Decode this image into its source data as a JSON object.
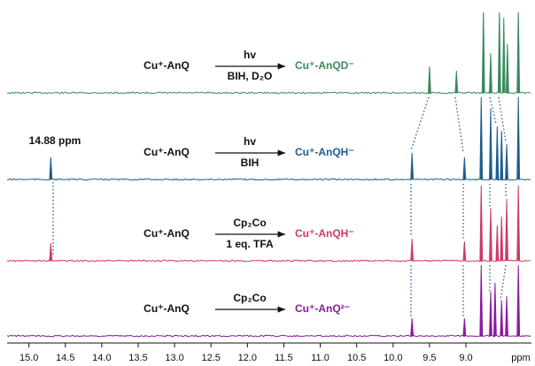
{
  "chart_data": {
    "type": "nmr",
    "x_label": "ppm",
    "xlim": [
      15.3,
      8.1
    ],
    "xticks": [
      {
        "value": 15,
        "label": "15.0"
      },
      {
        "value": 14.5,
        "label": "14.5"
      },
      {
        "value": 14,
        "label": "14.0"
      },
      {
        "value": 13.5,
        "label": "13.5"
      },
      {
        "value": 13,
        "label": "13.0"
      },
      {
        "value": 12.5,
        "label": "12.5"
      },
      {
        "value": 12,
        "label": "12.0"
      },
      {
        "value": 11.5,
        "label": "11.5"
      },
      {
        "value": 11,
        "label": "11.0"
      },
      {
        "value": 10.5,
        "label": "10.5"
      },
      {
        "value": 10,
        "label": "10.0"
      },
      {
        "value": 9.5,
        "label": "9.5"
      },
      {
        "value": 9,
        "label": "9.0"
      }
    ],
    "annotation": "14.88 ppm",
    "series": [
      {
        "color": "#3a8a5c",
        "reactant": "Cu⁺-AnQ",
        "above": "hv",
        "below": "BIH, D₂O",
        "name": "Cu⁺-AnQD⁻",
        "peaks": [
          {
            "ppm": 9.5,
            "height": 30
          },
          {
            "ppm": 9.13,
            "height": 25
          },
          {
            "ppm": 8.76,
            "height": 95
          },
          {
            "ppm": 8.66,
            "height": 45
          },
          {
            "ppm": 8.54,
            "height": 95
          },
          {
            "ppm": 8.48,
            "height": 85
          },
          {
            "ppm": 8.43,
            "height": 55
          },
          {
            "ppm": 8.28,
            "height": 95
          }
        ]
      },
      {
        "color": "#1f5d8c",
        "reactant": "Cu⁺-AnQ",
        "above": "hv",
        "below": "BIH",
        "name": "Cu⁺-AnQH⁻",
        "peaks": [
          {
            "ppm": 14.7,
            "height": 25
          },
          {
            "ppm": 9.74,
            "height": 30
          },
          {
            "ppm": 9.02,
            "height": 25
          },
          {
            "ppm": 8.79,
            "height": 93
          },
          {
            "ppm": 8.66,
            "height": 80
          },
          {
            "ppm": 8.57,
            "height": 60
          },
          {
            "ppm": 8.51,
            "height": 55
          },
          {
            "ppm": 8.44,
            "height": 40
          },
          {
            "ppm": 8.28,
            "height": 93
          }
        ]
      },
      {
        "color": "#cc3a66",
        "reactant": "Cu⁺-AnQ",
        "above": "Cp₂Co",
        "below": "1 eq. TFA",
        "name": "Cu⁺-AnQH⁻",
        "peaks": [
          {
            "ppm": 14.7,
            "height": 20
          },
          {
            "ppm": 9.74,
            "height": 25
          },
          {
            "ppm": 9.02,
            "height": 22
          },
          {
            "ppm": 8.79,
            "height": 85
          },
          {
            "ppm": 8.66,
            "height": 60
          },
          {
            "ppm": 8.57,
            "height": 40
          },
          {
            "ppm": 8.51,
            "height": 50
          },
          {
            "ppm": 8.44,
            "height": 70
          },
          {
            "ppm": 8.28,
            "height": 85
          }
        ]
      },
      {
        "color": "#8a1aa0",
        "reactant": "Cu⁺-AnQ",
        "above": "Cp₂Co",
        "below": null,
        "name": "Cu⁺-AnQ²⁻",
        "peaks": [
          {
            "ppm": 9.74,
            "height": 20
          },
          {
            "ppm": 9.02,
            "height": 20
          },
          {
            "ppm": 8.79,
            "height": 80
          },
          {
            "ppm": 8.66,
            "height": 50
          },
          {
            "ppm": 8.6,
            "height": 60
          },
          {
            "ppm": 8.51,
            "height": 40
          },
          {
            "ppm": 8.44,
            "height": 45
          },
          {
            "ppm": 8.28,
            "height": 80
          }
        ]
      }
    ]
  }
}
